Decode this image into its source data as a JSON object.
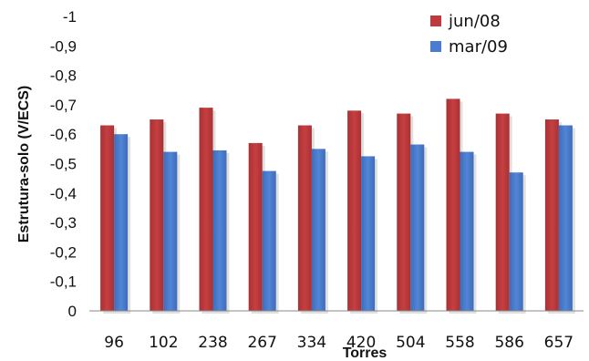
{
  "chart_data": {
    "type": "bar",
    "title": "",
    "xlabel": "Torres",
    "ylabel": "Estrutura-solo (V/ECS)",
    "categories": [
      "96",
      "102",
      "238",
      "267",
      "334",
      "420",
      "504",
      "558",
      "586",
      "657"
    ],
    "series": [
      {
        "name": "jun/08",
        "color": "#c0393b",
        "values": [
          -0.63,
          -0.65,
          -0.69,
          -0.57,
          -0.63,
          -0.68,
          -0.67,
          -0.72,
          -0.67,
          -0.65
        ]
      },
      {
        "name": "mar/09",
        "color": "#4a7ccf",
        "values": [
          -0.6,
          -0.54,
          -0.545,
          -0.475,
          -0.55,
          -0.525,
          -0.565,
          -0.54,
          -0.47,
          -0.63
        ]
      }
    ],
    "ylim": [
      0,
      -1
    ],
    "y_ticks": [
      0,
      -0.1,
      -0.2,
      -0.3,
      -0.4,
      -0.5,
      -0.6,
      -0.7,
      -0.8,
      -0.9,
      -1
    ],
    "y_tick_labels": [
      "0",
      "-0,1",
      "-0,2",
      "-0,3",
      "-0,4",
      "-0,5",
      "-0,6",
      "-0,7",
      "-0,8",
      "-0,9",
      "-1"
    ],
    "grid": false,
    "legend": "top-right"
  }
}
